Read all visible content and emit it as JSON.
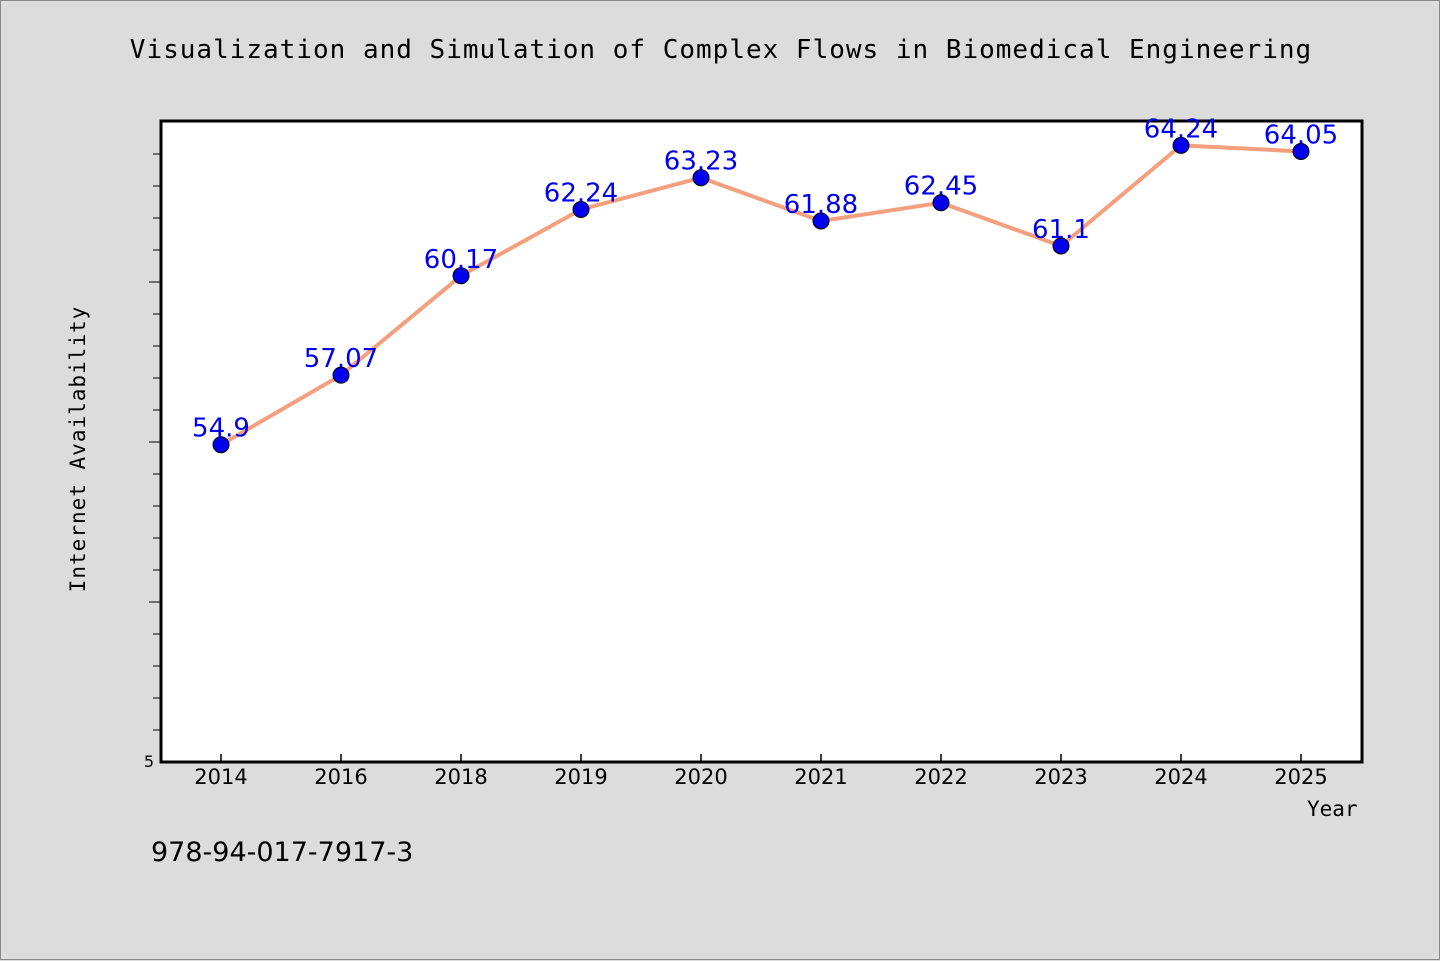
{
  "chart_data": {
    "type": "line",
    "title": "Visualization and Simulation of Complex Flows in Biomedical Engineering",
    "xlabel": "Year",
    "ylabel": "Internet Availability",
    "categories": [
      "2014",
      "2016",
      "2018",
      "2019",
      "2020",
      "2021",
      "2022",
      "2023",
      "2024",
      "2025"
    ],
    "values": [
      54.9,
      57.07,
      60.17,
      62.24,
      63.23,
      61.88,
      62.45,
      61.1,
      64.24,
      64.05
    ],
    "value_labels": [
      "54.9",
      "57.07",
      "60.17",
      "62.24",
      "63.23",
      "61.88",
      "62.45",
      "61.1",
      "64.24",
      "64.05"
    ],
    "y_tick_label": "5",
    "ylim": [
      45,
      65
    ],
    "grid": false,
    "line_color": "#f4a07e",
    "marker_color": "#0000ee",
    "label_color": "#0000ee"
  },
  "footer_text": "978-94-017-7917-3"
}
